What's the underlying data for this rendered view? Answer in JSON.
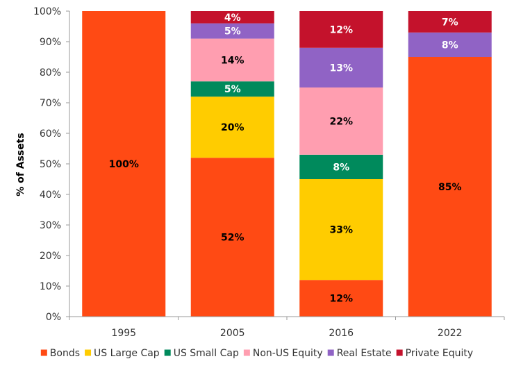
{
  "chart_data": {
    "type": "bar",
    "stacked": true,
    "categories": [
      "1995",
      "2005",
      "2016",
      "2022"
    ],
    "ylabel": "% of Assets",
    "ylim": [
      0,
      100
    ],
    "yticks": [
      "0%",
      "10%",
      "20%",
      "30%",
      "40%",
      "50%",
      "60%",
      "70%",
      "80%",
      "90%",
      "100%"
    ],
    "legend_position": "bottom",
    "grid": false,
    "series": [
      {
        "name": "Bonds",
        "color": "#FF4A14",
        "label_color": "#000000",
        "values": [
          100,
          52,
          12,
          85
        ],
        "labels": [
          "100%",
          "52%",
          "12%",
          "85%"
        ]
      },
      {
        "name": "US Large Cap",
        "color": "#FFCC00",
        "label_color": "#000000",
        "values": [
          0,
          20,
          33,
          0
        ],
        "labels": [
          "",
          "20%",
          "33%",
          ""
        ]
      },
      {
        "name": "US Small Cap",
        "color": "#008A5C",
        "label_color": "#FFFFFF",
        "values": [
          0,
          5,
          8,
          0
        ],
        "labels": [
          "",
          "5%",
          "8%",
          ""
        ]
      },
      {
        "name": "Non-US Equity",
        "color": "#FF9EB0",
        "label_color": "#000000",
        "values": [
          0,
          14,
          22,
          0
        ],
        "labels": [
          "",
          "14%",
          "22%",
          ""
        ]
      },
      {
        "name": "Real Estate",
        "color": "#9063C5",
        "label_color": "#FFFFFF",
        "values": [
          0,
          5,
          13,
          8
        ],
        "labels": [
          "",
          "5%",
          "13%",
          "8%"
        ]
      },
      {
        "name": "Private Equity",
        "color": "#C4122C",
        "label_color": "#FFFFFF",
        "values": [
          0,
          4,
          12,
          7
        ],
        "labels": [
          "",
          "4%",
          "12%",
          "7%"
        ]
      }
    ]
  }
}
